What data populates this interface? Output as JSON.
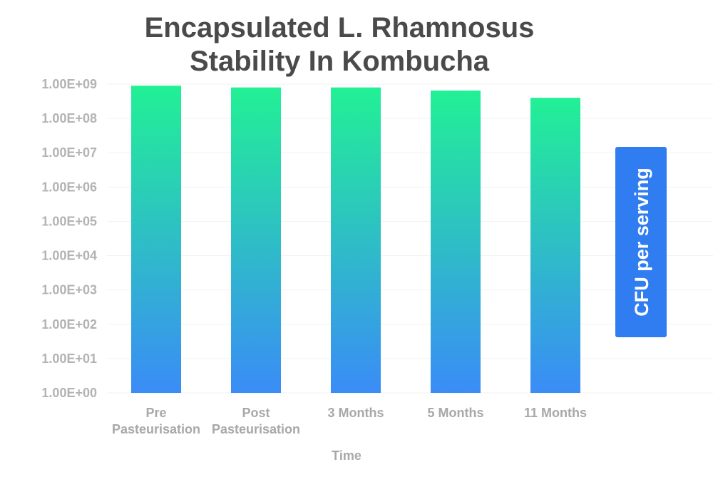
{
  "chart_data": {
    "type": "bar",
    "title_lines": [
      "Encapsulated L. Rhamnosus",
      "Stability In Kombucha"
    ],
    "categories": [
      [
        "Pre",
        "Pasteurisation"
      ],
      [
        "Post",
        "Pasteurisation"
      ],
      [
        "3 Months"
      ],
      [
        "5 Months"
      ],
      [
        "11 Months"
      ]
    ],
    "series": [
      {
        "name": "CFU per serving",
        "values": [
          900000000,
          800000000,
          800000000,
          650000000,
          400000000
        ]
      }
    ],
    "xlabel": "Time",
    "ylabel": "",
    "yscale": "log10",
    "ylim": [
      1,
      1000000000
    ],
    "yticks": [
      "1.00E+00",
      "1.00E+01",
      "1.00E+02",
      "1.00E+03",
      "1.00E+04",
      "1.00E+05",
      "1.00E+06",
      "1.00E+07",
      "1.00E+08",
      "1.00E+09"
    ],
    "legend": {
      "label": "CFU per serving",
      "placement": "right"
    },
    "colors": {
      "bar_top": "#22f095",
      "bar_bottom": "#3a8cf6",
      "legend_bg": "#2f7df1",
      "title": "#4a4a4a",
      "ticks": "#b3b3b3"
    }
  }
}
